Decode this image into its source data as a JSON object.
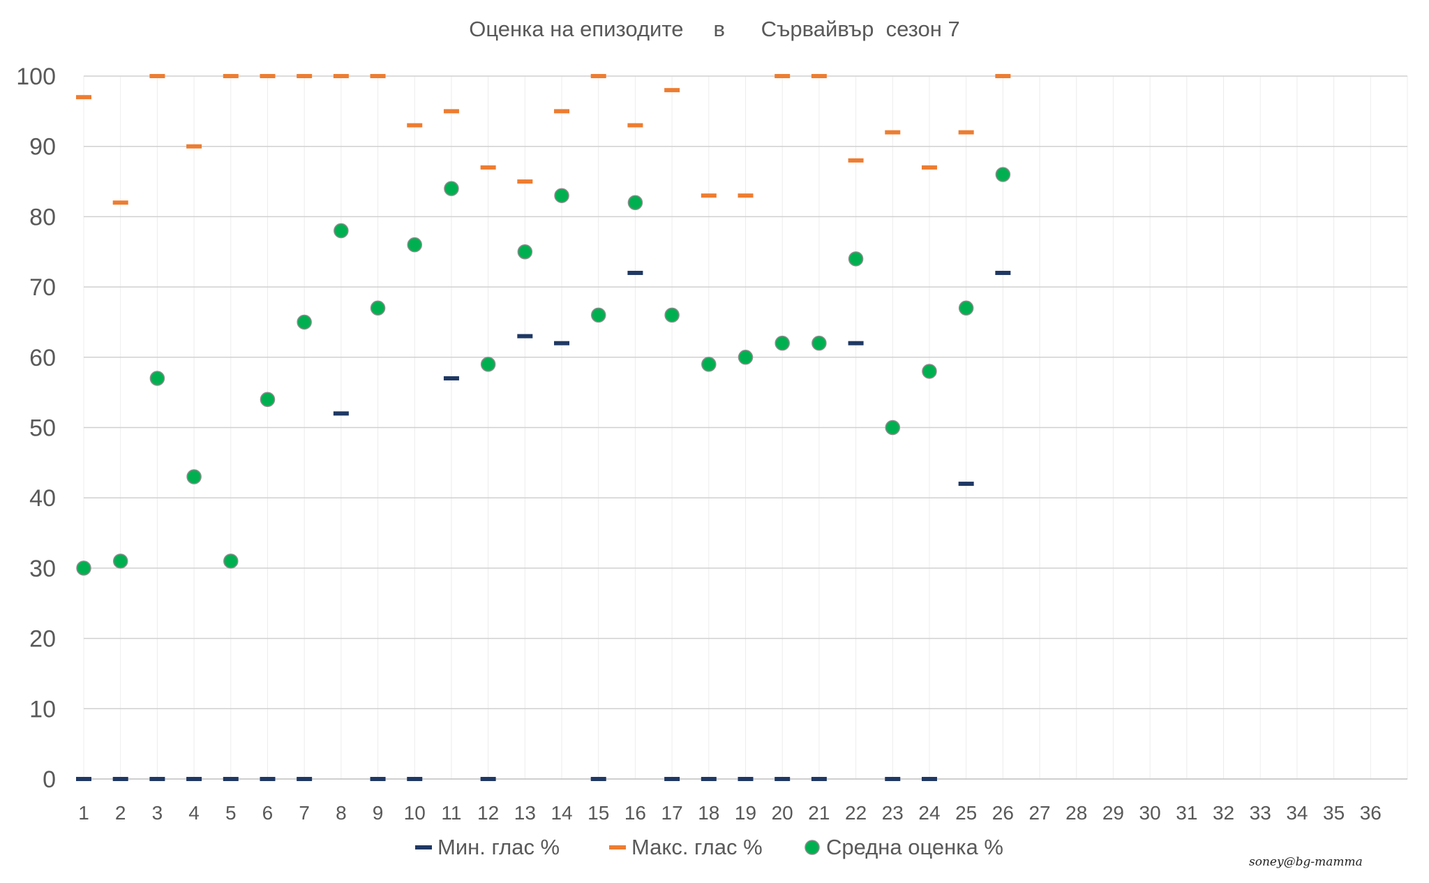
{
  "chart_data": {
    "type": "scatter",
    "title": "Оценка на епизодите     в      Сървайвър  сезон 7",
    "xlabel": "",
    "ylabel": "",
    "xlim": [
      1,
      36
    ],
    "ylim": [
      0,
      100
    ],
    "x_ticks": [
      1,
      2,
      3,
      4,
      5,
      6,
      7,
      8,
      9,
      10,
      11,
      12,
      13,
      14,
      15,
      16,
      17,
      18,
      19,
      20,
      21,
      22,
      23,
      24,
      25,
      26,
      27,
      28,
      29,
      30,
      31,
      32,
      33,
      34,
      35,
      36
    ],
    "y_ticks": [
      0,
      10,
      20,
      30,
      40,
      50,
      60,
      70,
      80,
      90,
      100
    ],
    "grid": true,
    "legend_position": "bottom",
    "series": [
      {
        "name": "Мин. глас %",
        "marker": "dash",
        "color": "#1f3864",
        "points": [
          [
            1,
            0
          ],
          [
            2,
            0
          ],
          [
            3,
            0
          ],
          [
            4,
            0
          ],
          [
            5,
            0
          ],
          [
            6,
            0
          ],
          [
            7,
            0
          ],
          [
            8,
            52
          ],
          [
            9,
            0
          ],
          [
            10,
            0
          ],
          [
            11,
            57
          ],
          [
            12,
            0
          ],
          [
            13,
            63
          ],
          [
            14,
            62
          ],
          [
            15,
            0
          ],
          [
            16,
            72
          ],
          [
            17,
            0
          ],
          [
            18,
            0
          ],
          [
            19,
            0
          ],
          [
            20,
            0
          ],
          [
            21,
            0
          ],
          [
            22,
            62
          ],
          [
            23,
            0
          ],
          [
            24,
            0
          ],
          [
            25,
            42
          ],
          [
            26,
            72
          ]
        ]
      },
      {
        "name": "Макс. глас %",
        "marker": "dash",
        "color": "#ed7d31",
        "points": [
          [
            1,
            97
          ],
          [
            2,
            82
          ],
          [
            3,
            100
          ],
          [
            4,
            90
          ],
          [
            5,
            100
          ],
          [
            6,
            100
          ],
          [
            7,
            100
          ],
          [
            8,
            100
          ],
          [
            9,
            100
          ],
          [
            10,
            93
          ],
          [
            11,
            95
          ],
          [
            12,
            87
          ],
          [
            13,
            85
          ],
          [
            14,
            95
          ],
          [
            15,
            100
          ],
          [
            16,
            93
          ],
          [
            17,
            98
          ],
          [
            18,
            83
          ],
          [
            19,
            83
          ],
          [
            20,
            100
          ],
          [
            21,
            100
          ],
          [
            22,
            88
          ],
          [
            23,
            92
          ],
          [
            24,
            87
          ],
          [
            25,
            92
          ],
          [
            26,
            100
          ]
        ]
      },
      {
        "name": "Средна оценка %",
        "marker": "circle",
        "color": "#00b050",
        "points": [
          [
            1,
            30
          ],
          [
            2,
            31
          ],
          [
            3,
            57
          ],
          [
            4,
            43
          ],
          [
            5,
            31
          ],
          [
            6,
            54
          ],
          [
            7,
            65
          ],
          [
            8,
            78
          ],
          [
            9,
            67
          ],
          [
            10,
            76
          ],
          [
            11,
            84
          ],
          [
            12,
            59
          ],
          [
            13,
            75
          ],
          [
            14,
            83
          ],
          [
            15,
            66
          ],
          [
            16,
            82
          ],
          [
            17,
            66
          ],
          [
            18,
            59
          ],
          [
            19,
            60
          ],
          [
            20,
            62
          ],
          [
            21,
            62
          ],
          [
            22,
            74
          ],
          [
            23,
            50
          ],
          [
            24,
            58
          ],
          [
            25,
            67
          ],
          [
            26,
            86
          ]
        ]
      }
    ]
  },
  "watermark": "soney@bg-mamma"
}
